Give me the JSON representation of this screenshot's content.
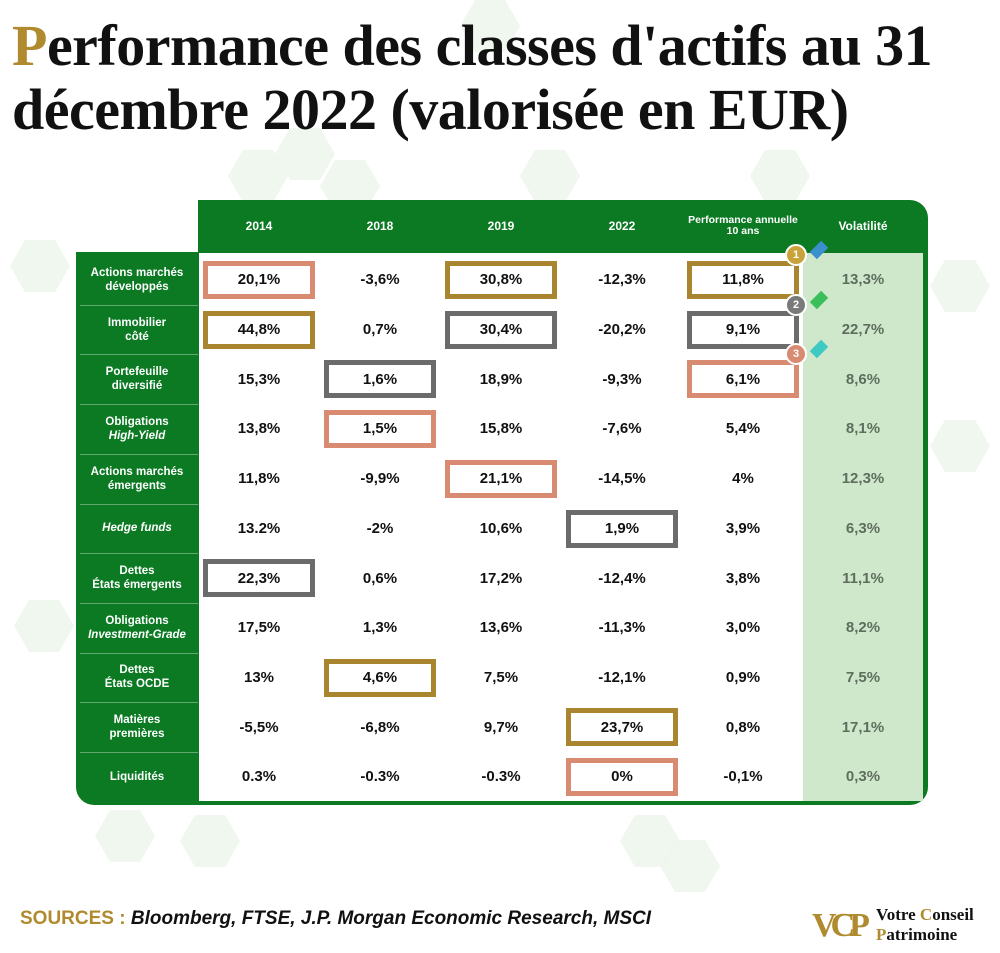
{
  "title": {
    "first_letter": "P",
    "rest": "erformance des classes d'actifs au 31 décembre 2022 (valorisée en EUR)"
  },
  "chart_data": {
    "type": "table",
    "columns": [
      "2014",
      "2018",
      "2019",
      "2022",
      "Performance annuelle 10 ans",
      "Volatilité"
    ],
    "rows": [
      {
        "label": [
          "Actions marchés",
          "développés"
        ],
        "italic": [
          false,
          false
        ],
        "values": [
          "20,1%",
          "-3,6%",
          "30,8%",
          "-12,3%",
          "11,8%",
          "13,3%"
        ]
      },
      {
        "label": [
          "Immobilier",
          "côté"
        ],
        "italic": [
          false,
          false
        ],
        "values": [
          "44,8%",
          "0,7%",
          "30,4%",
          "-20,2%",
          "9,1%",
          "22,7%"
        ]
      },
      {
        "label": [
          "Portefeuille",
          "diversifié"
        ],
        "italic": [
          false,
          false
        ],
        "values": [
          "15,3%",
          "1,6%",
          "18,9%",
          "-9,3%",
          "6,1%",
          "8,6%"
        ]
      },
      {
        "label": [
          "Obligations",
          "High-Yield"
        ],
        "italic": [
          false,
          true
        ],
        "values": [
          "13,8%",
          "1,5%",
          "15,8%",
          "-7,6%",
          "5,4%",
          "8,1%"
        ]
      },
      {
        "label": [
          "Actions marchés",
          "émergents"
        ],
        "italic": [
          false,
          false
        ],
        "values": [
          "11,8%",
          "-9,9%",
          "21,1%",
          "-14,5%",
          "4%",
          "12,3%"
        ]
      },
      {
        "label": [
          "Hedge funds"
        ],
        "italic": [
          true
        ],
        "values": [
          "13.2%",
          "-2%",
          "10,6%",
          "1,9%",
          "3,9%",
          "6,3%"
        ]
      },
      {
        "label": [
          "Dettes",
          "États émergents"
        ],
        "italic": [
          false,
          false
        ],
        "values": [
          "22,3%",
          "0,6%",
          "17,2%",
          "-12,4%",
          "3,8%",
          "11,1%"
        ]
      },
      {
        "label": [
          "Obligations",
          "Investment-Grade"
        ],
        "italic": [
          false,
          true
        ],
        "values": [
          "17,5%",
          "1,3%",
          "13,6%",
          "-11,3%",
          "3,0%",
          "8,2%"
        ]
      },
      {
        "label": [
          "Dettes",
          "États OCDE"
        ],
        "italic": [
          false,
          false
        ],
        "values": [
          "13%",
          "4,6%",
          "7,5%",
          "-12,1%",
          "0,9%",
          "7,5%"
        ]
      },
      {
        "label": [
          "Matières",
          "premières"
        ],
        "italic": [
          false,
          false
        ],
        "values": [
          "-5,5%",
          "-6,8%",
          "9,7%",
          "23,7%",
          "0,8%",
          "17,1%"
        ]
      },
      {
        "label": [
          "Liquidités"
        ],
        "italic": [
          false
        ],
        "values": [
          "0.3%",
          "-0.3%",
          "-0.3%",
          "0%",
          "-0,1%",
          "0,3%"
        ]
      }
    ],
    "highlights": [
      {
        "col": 0,
        "rank": 1,
        "row": 1
      },
      {
        "col": 0,
        "rank": 2,
        "row": 6
      },
      {
        "col": 0,
        "rank": 3,
        "row": 0
      },
      {
        "col": 1,
        "rank": 1,
        "row": 8
      },
      {
        "col": 1,
        "rank": 2,
        "row": 2
      },
      {
        "col": 1,
        "rank": 3,
        "row": 3
      },
      {
        "col": 2,
        "rank": 1,
        "row": 0
      },
      {
        "col": 2,
        "rank": 2,
        "row": 1
      },
      {
        "col": 2,
        "rank": 3,
        "row": 4
      },
      {
        "col": 3,
        "rank": 1,
        "row": 9
      },
      {
        "col": 3,
        "rank": 2,
        "row": 5
      },
      {
        "col": 3,
        "rank": 3,
        "row": 10
      },
      {
        "col": 4,
        "rank": 1,
        "row": 0
      },
      {
        "col": 4,
        "rank": 2,
        "row": 1
      },
      {
        "col": 4,
        "rank": 3,
        "row": 2
      }
    ],
    "medals": [
      "1",
      "2",
      "3"
    ]
  },
  "colors": {
    "panel_green": "#0b7a23",
    "volatility_bg": "#cfe8cc",
    "rank1_gold": "#a8852e",
    "rank2_grey": "#6b6b6b",
    "rank3_salmon": "#d98b72",
    "accent_gold": "#b08a2e"
  },
  "sources": {
    "label": "SOURCES :",
    "text": "Bloomberg, FTSE, J.P. Morgan Economic Research, MSCI"
  },
  "logo": {
    "mark": "VCP",
    "line1_a": "Votre ",
    "line1_b": "C",
    "line1_c": "onseil",
    "line2_a": "P",
    "line2_b": "atrimoine"
  }
}
